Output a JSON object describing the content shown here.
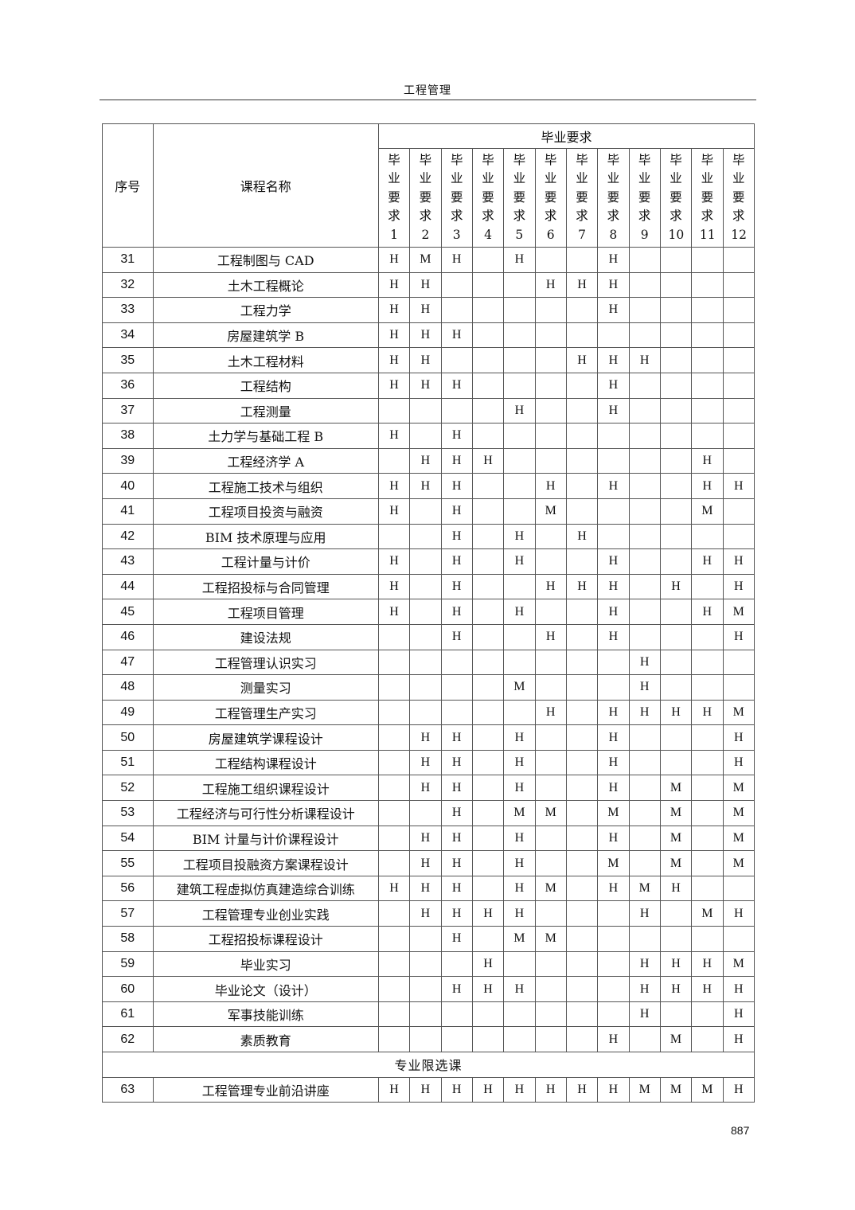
{
  "header": {
    "title": "工程管理"
  },
  "table": {
    "col_no": "序号",
    "col_name": "课程名称",
    "group_header": "毕业要求",
    "req_headers": [
      "毕业要求1",
      "毕业要求2",
      "毕业要求3",
      "毕业要求4",
      "毕业要求5",
      "毕业要求6",
      "毕业要求7",
      "毕业要求8",
      "毕业要求9",
      "毕业要求10",
      "毕业要求11",
      "毕业要求12"
    ],
    "rows": [
      {
        "no": "31",
        "name": "工程制图与 CAD",
        "cells": [
          "H",
          "M",
          "H",
          "",
          "H",
          "",
          "",
          "H",
          "",
          "",
          "",
          ""
        ]
      },
      {
        "no": "32",
        "name": "土木工程概论",
        "cells": [
          "H",
          "H",
          "",
          "",
          "",
          "H",
          "H",
          "H",
          "",
          "",
          "",
          ""
        ]
      },
      {
        "no": "33",
        "name": "工程力学",
        "cells": [
          "H",
          "H",
          "",
          "",
          "",
          "",
          "",
          "H",
          "",
          "",
          "",
          ""
        ]
      },
      {
        "no": "34",
        "name": "房屋建筑学 B",
        "cells": [
          "H",
          "H",
          "H",
          "",
          "",
          "",
          "",
          "",
          "",
          "",
          "",
          ""
        ]
      },
      {
        "no": "35",
        "name": "土木工程材料",
        "cells": [
          "H",
          "H",
          "",
          "",
          "",
          "",
          "H",
          "H",
          "H",
          "",
          "",
          ""
        ]
      },
      {
        "no": "36",
        "name": "工程结构",
        "cells": [
          "H",
          "H",
          "H",
          "",
          "",
          "",
          "",
          "H",
          "",
          "",
          "",
          ""
        ]
      },
      {
        "no": "37",
        "name": "工程测量",
        "cells": [
          "",
          "",
          "",
          "",
          "H",
          "",
          "",
          "H",
          "",
          "",
          "",
          ""
        ]
      },
      {
        "no": "38",
        "name": "土力学与基础工程 B",
        "cells": [
          "H",
          "",
          "H",
          "",
          "",
          "",
          "",
          "",
          "",
          "",
          "",
          ""
        ]
      },
      {
        "no": "39",
        "name": "工程经济学 A",
        "cells": [
          "",
          "H",
          "H",
          "H",
          "",
          "",
          "",
          "",
          "",
          "",
          "H",
          ""
        ]
      },
      {
        "no": "40",
        "name": "工程施工技术与组织",
        "cells": [
          "H",
          "H",
          "H",
          "",
          "",
          "H",
          "",
          "H",
          "",
          "",
          "H",
          "H"
        ]
      },
      {
        "no": "41",
        "name": "工程项目投资与融资",
        "cells": [
          "H",
          "",
          "H",
          "",
          "",
          "M",
          "",
          "",
          "",
          "",
          "M",
          ""
        ]
      },
      {
        "no": "42",
        "name": "BIM 技术原理与应用",
        "cells": [
          "",
          "",
          "H",
          "",
          "H",
          "",
          "H",
          "",
          "",
          "",
          "",
          ""
        ]
      },
      {
        "no": "43",
        "name": "工程计量与计价",
        "cells": [
          "H",
          "",
          "H",
          "",
          "H",
          "",
          "",
          "H",
          "",
          "",
          "H",
          "H"
        ]
      },
      {
        "no": "44",
        "name": "工程招投标与合同管理",
        "cells": [
          "H",
          "",
          "H",
          "",
          "",
          "H",
          "H",
          "H",
          "",
          "H",
          "",
          "H"
        ]
      },
      {
        "no": "45",
        "name": "工程项目管理",
        "cells": [
          "H",
          "",
          "H",
          "",
          "H",
          "",
          "",
          "H",
          "",
          "",
          "H",
          "M"
        ]
      },
      {
        "no": "46",
        "name": "建设法规",
        "cells": [
          "",
          "",
          "H",
          "",
          "",
          "H",
          "",
          "H",
          "",
          "",
          "",
          "H"
        ]
      },
      {
        "no": "47",
        "name": "工程管理认识实习",
        "cells": [
          "",
          "",
          "",
          "",
          "",
          "",
          "",
          "",
          "H",
          "",
          "",
          ""
        ]
      },
      {
        "no": "48",
        "name": "测量实习",
        "cells": [
          "",
          "",
          "",
          "",
          "M",
          "",
          "",
          "",
          "H",
          "",
          "",
          ""
        ]
      },
      {
        "no": "49",
        "name": "工程管理生产实习",
        "cells": [
          "",
          "",
          "",
          "",
          "",
          "H",
          "",
          "H",
          "H",
          "H",
          "H",
          "M"
        ]
      },
      {
        "no": "50",
        "name": "房屋建筑学课程设计",
        "cells": [
          "",
          "H",
          "H",
          "",
          "H",
          "",
          "",
          "H",
          "",
          "",
          "",
          "H"
        ]
      },
      {
        "no": "51",
        "name": "工程结构课程设计",
        "cells": [
          "",
          "H",
          "H",
          "",
          "H",
          "",
          "",
          "H",
          "",
          "",
          "",
          "H"
        ]
      },
      {
        "no": "52",
        "name": "工程施工组织课程设计",
        "cells": [
          "",
          "H",
          "H",
          "",
          "H",
          "",
          "",
          "H",
          "",
          "M",
          "",
          "M"
        ]
      },
      {
        "no": "53",
        "name": "工程经济与可行性分析课程设计",
        "cells": [
          "",
          "",
          "H",
          "",
          "M",
          "M",
          "",
          "M",
          "",
          "M",
          "",
          "M"
        ]
      },
      {
        "no": "54",
        "name": "BIM 计量与计价课程设计",
        "cells": [
          "",
          "H",
          "H",
          "",
          "H",
          "",
          "",
          "H",
          "",
          "M",
          "",
          "M"
        ]
      },
      {
        "no": "55",
        "name": "工程项目投融资方案课程设计",
        "cells": [
          "",
          "H",
          "H",
          "",
          "H",
          "",
          "",
          "M",
          "",
          "M",
          "",
          "M"
        ]
      },
      {
        "no": "56",
        "name": "建筑工程虚拟仿真建造综合训练",
        "cells": [
          "H",
          "H",
          "H",
          "",
          "H",
          "M",
          "",
          "H",
          "M",
          "H",
          "",
          ""
        ]
      },
      {
        "no": "57",
        "name": "工程管理专业创业实践",
        "cells": [
          "",
          "H",
          "H",
          "H",
          "H",
          "",
          "",
          "",
          "H",
          "",
          "M",
          "H"
        ]
      },
      {
        "no": "58",
        "name": "工程招投标课程设计",
        "cells": [
          "",
          "",
          "H",
          "",
          "M",
          "M",
          "",
          "",
          "",
          "",
          "",
          ""
        ]
      },
      {
        "no": "59",
        "name": "毕业实习",
        "cells": [
          "",
          "",
          "",
          "H",
          "",
          "",
          "",
          "",
          "H",
          "H",
          "H",
          "M"
        ]
      },
      {
        "no": "60",
        "name": "毕业论文（设计）",
        "cells": [
          "",
          "",
          "H",
          "H",
          "H",
          "",
          "",
          "",
          "H",
          "H",
          "H",
          "H"
        ]
      },
      {
        "no": "61",
        "name": "军事技能训练",
        "cells": [
          "",
          "",
          "",
          "",
          "",
          "",
          "",
          "",
          "H",
          "",
          "",
          "H"
        ]
      },
      {
        "no": "62",
        "name": "素质教育",
        "cells": [
          "",
          "",
          "",
          "",
          "",
          "",
          "",
          "H",
          "",
          "M",
          "",
          "H"
        ]
      }
    ],
    "section_label": "专业限选课",
    "section_rows": [
      {
        "no": "63",
        "name": "工程管理专业前沿讲座",
        "cells": [
          "H",
          "H",
          "H",
          "H",
          "H",
          "H",
          "H",
          "H",
          "M",
          "M",
          "M",
          "H"
        ]
      }
    ]
  },
  "footer": {
    "page_number": "887"
  }
}
